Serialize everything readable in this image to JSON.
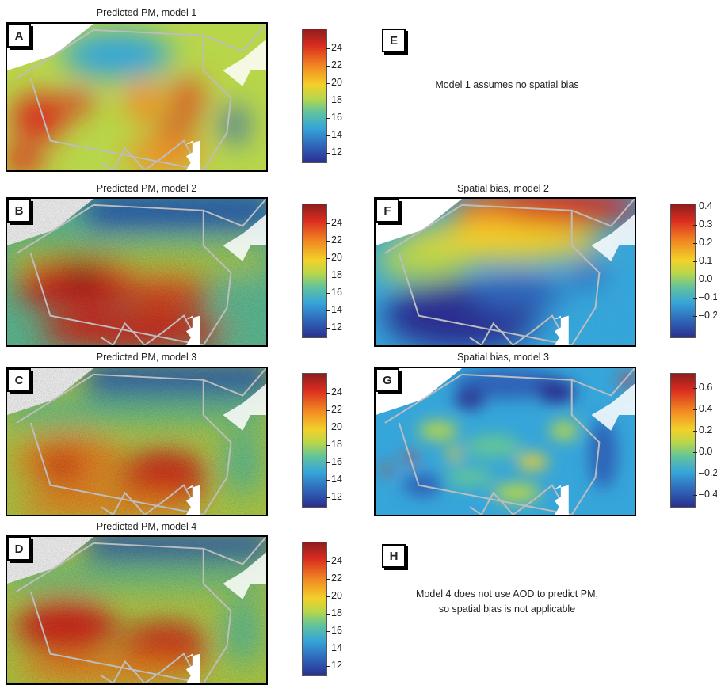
{
  "panels": {
    "A": {
      "letter": "A",
      "title": "Predicted PM, model 1"
    },
    "B": {
      "letter": "B",
      "title": "Predicted PM, model 2"
    },
    "C": {
      "letter": "C",
      "title": "Predicted PM, model 3"
    },
    "D": {
      "letter": "D",
      "title": "Predicted PM, model 4"
    },
    "E": {
      "letter": "E",
      "note": "Model 1 assumes no spatial bias"
    },
    "F": {
      "letter": "F",
      "title": "Spatial bias, model 2"
    },
    "G": {
      "letter": "G",
      "title": "Spatial bias, model 3"
    },
    "H": {
      "letter": "H",
      "note_line1": "Model 4 does not use AOD to predict PM,",
      "note_line2": "so spatial bias is not applicable"
    }
  },
  "colorbars": {
    "pm_ticks": [
      "24",
      "22",
      "20",
      "18",
      "16",
      "14",
      "12"
    ],
    "bias2_ticks": [
      "0.4",
      "0.3",
      "0.2",
      "0.1",
      "0.0",
      "–0.1",
      "–0.2"
    ],
    "bias3_ticks": [
      "0.6",
      "0.4",
      "0.2",
      "0.0",
      "–0.2",
      "–0.4"
    ],
    "colors": [
      "#8c1e1e",
      "#d92b1f",
      "#f28a22",
      "#f2d12a",
      "#b8d64a",
      "#63c49a",
      "#36a5d9",
      "#2f63b8",
      "#2b2f8f"
    ]
  }
}
